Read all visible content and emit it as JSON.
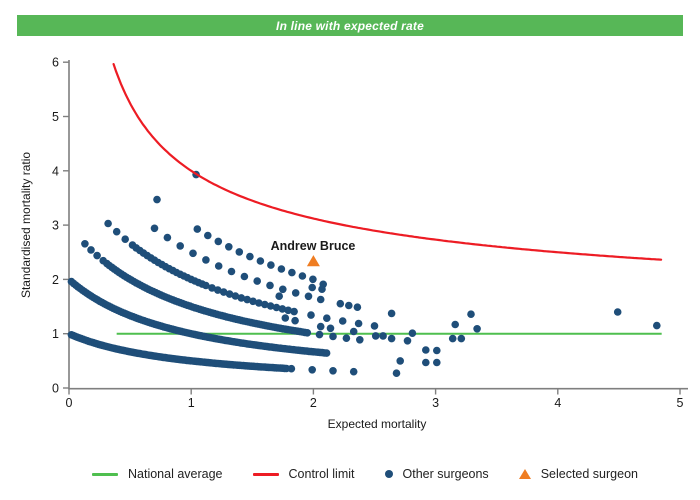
{
  "banner": {
    "text": "In line with expected rate",
    "background_color": "#57b757",
    "text_color": "#ffffff"
  },
  "chart_data": {
    "type": "scatter",
    "title": "",
    "xlabel": "Expected mortality",
    "ylabel": "Standardised mortality ratio",
    "xlim": [
      0,
      5
    ],
    "ylim": [
      0,
      6
    ],
    "xticks": [
      0,
      1,
      2,
      3,
      4,
      5
    ],
    "yticks": [
      0,
      1,
      2,
      3,
      4,
      5,
      6
    ],
    "grid": false,
    "legend_position": "bottom",
    "legend": [
      "National average",
      "Control limit",
      "Other surgeons",
      "Selected surgeon"
    ],
    "national_average": {
      "label": "National average",
      "y": 1.0,
      "x_start": 0.39,
      "x_end": 4.85,
      "color": "#4fbf4f"
    },
    "control_limit": {
      "label": "Control limit",
      "formula": "y = 1 + 3/sqrt(x)",
      "a": 1,
      "b": 3,
      "x_start": 0.365,
      "x_end": 4.85,
      "color": "#ed1c24"
    },
    "selected_surgeon": {
      "label": "Selected surgeon",
      "name": "Andrew Bruce",
      "x": 2.0,
      "y": 2.33,
      "marker": "triangle",
      "color": "#ef7d22"
    },
    "other_surgeons": {
      "label": "Other surgeons",
      "marker": "circle",
      "color": "#1f4e79",
      "band_formula": "smr = deaths / (1 + expected)",
      "bands": [
        {
          "deaths": 1,
          "segments": [
            [
              0.02,
              1.78,
              0.016
            ],
            [
              1.82,
              2.35,
              0.17
            ],
            [
              2.68,
              2.68,
              1
            ]
          ]
        },
        {
          "deaths": 2,
          "segments": [
            [
              0.02,
              2.12,
              0.018
            ]
          ]
        },
        {
          "deaths": 3,
          "segments": [
            [
              0.13,
              0.28,
              0.05
            ],
            [
              0.31,
              1.95,
              0.02
            ],
            [
              2.05,
              2.38,
              0.11
            ]
          ]
        },
        {
          "deaths": 4,
          "segments": [
            [
              0.32,
              0.46,
              0.07
            ],
            [
              0.52,
              1.12,
              0.03
            ],
            [
              1.17,
              1.88,
              0.048
            ],
            [
              1.98,
              2.5,
              0.13
            ]
          ]
        },
        {
          "deaths": 5,
          "segments": [
            [
              0.7,
              2.0,
              0.105
            ],
            [
              2.22,
              2.36,
              0.07
            ],
            [
              2.64,
              2.64,
              1
            ]
          ]
        },
        {
          "deaths": 6,
          "segments": [
            [
              1.05,
              2.08,
              0.086
            ]
          ]
        }
      ],
      "points": [
        [
          0.72,
          3.47
        ],
        [
          1.04,
          3.93
        ],
        [
          1.72,
          1.69
        ],
        [
          1.99,
          1.85
        ],
        [
          2.07,
          1.82
        ],
        [
          2.06,
          1.63
        ],
        [
          1.77,
          1.29
        ],
        [
          1.85,
          1.24
        ],
        [
          2.06,
          1.13
        ],
        [
          2.14,
          1.1
        ],
        [
          2.33,
          1.04
        ],
        [
          2.51,
          0.96
        ],
        [
          2.57,
          0.96
        ],
        [
          2.64,
          0.91
        ],
        [
          2.77,
          0.87
        ],
        [
          2.81,
          1.01
        ],
        [
          2.92,
          0.7
        ],
        [
          3.01,
          0.69
        ],
        [
          2.92,
          0.47
        ],
        [
          3.01,
          0.47
        ],
        [
          2.71,
          0.5
        ],
        [
          3.14,
          0.91
        ],
        [
          3.21,
          0.91
        ],
        [
          3.16,
          1.17
        ],
        [
          3.29,
          1.36
        ],
        [
          3.34,
          1.09
        ],
        [
          4.49,
          1.4
        ],
        [
          4.81,
          1.15
        ],
        [
          2.08,
          1.91
        ]
      ]
    }
  }
}
